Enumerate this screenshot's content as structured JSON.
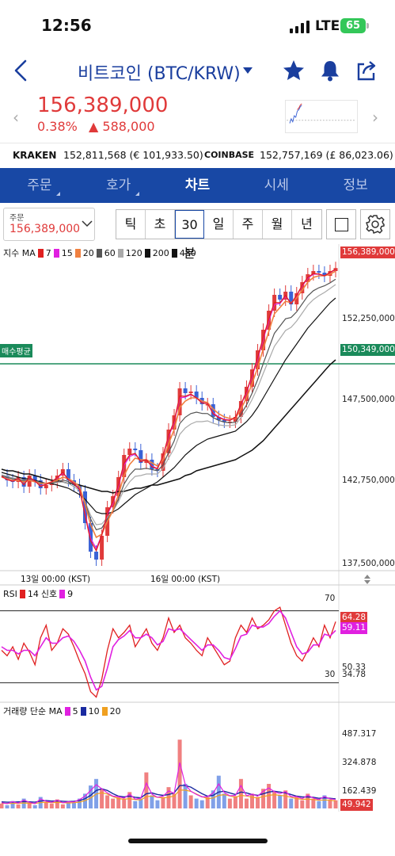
{
  "status": {
    "time": "12:56",
    "network": "LTE",
    "battery": "65"
  },
  "header": {
    "title": "비트코인 (BTC/KRW)"
  },
  "price": {
    "current": "156,389,000",
    "change_pct": "0.38%",
    "change_abs": "588,000"
  },
  "exchanges": {
    "kraken_label": "KRAKEN",
    "kraken_value": "152,811,568 (€ 101,933.50)",
    "coinbase_label": "COINBASE",
    "coinbase_value": "152,757,169 (£ 86,023.06)"
  },
  "tabs": [
    "주문",
    "호가",
    "차트",
    "시세",
    "정보"
  ],
  "active_tab": "차트",
  "order_select": {
    "label": "주문",
    "value": "156,389,000"
  },
  "periods": [
    "틱",
    "초",
    "30분",
    "일",
    "주",
    "월",
    "년"
  ],
  "selected_period": "30분",
  "colors": {
    "up": "#e03a3a",
    "down": "#3a62d6",
    "brand": "#1848a5",
    "avg_line": "#1a8a5a"
  },
  "chart_data": [
    {
      "type": "line",
      "title": "",
      "legend": {
        "label": "지수 MA",
        "entries": [
          {
            "name": "7",
            "color": "#e02020"
          },
          {
            "name": "15",
            "color": "#e020e0"
          },
          {
            "name": "20",
            "color": "#f08040"
          },
          {
            "name": "60",
            "color": "#555555"
          },
          {
            "name": "120",
            "color": "#aaaaaa"
          },
          {
            "name": "200",
            "color": "#111111"
          },
          {
            "name": "480",
            "color": "#111111"
          }
        ]
      },
      "y_ticks": [
        "152,250,000",
        "147,500,000",
        "142,750,000",
        "137,500,000"
      ],
      "current_tag": "156,389,000",
      "avg_buy": {
        "label": "매수평균",
        "value": "150,349,000",
        "numeric": 150349000
      },
      "ylim": [
        137500000,
        157700000
      ],
      "x_ticks": [
        "13일 00:00 (KST)",
        "16일 00:00 (KST)"
      ],
      "price_series": [
        143300000,
        143000000,
        142900000,
        143200000,
        142600000,
        143300000,
        143000000,
        142500000,
        142700000,
        142900000,
        143300000,
        143700000,
        143000000,
        142700000,
        142300000,
        140300000,
        138500000,
        138000000,
        139500000,
        141300000,
        142000000,
        143200000,
        144600000,
        145000000,
        144900000,
        144100000,
        144300000,
        143700000,
        143600000,
        144700000,
        146200000,
        147100000,
        148800000,
        148500000,
        148600000,
        148200000,
        147800000,
        147800000,
        147000000,
        146800000,
        146700000,
        146700000,
        147000000,
        148000000,
        148900000,
        150000000,
        151200000,
        152500000,
        153700000,
        154700000,
        154400000,
        154900000,
        154100000,
        154800000,
        155500000,
        156000000,
        156200000,
        156100000,
        155900000,
        156200000,
        156389000
      ],
      "ma_fast": [
        143200000,
        143100000,
        143000000,
        143000000,
        142900000,
        143000000,
        142900000,
        142800000,
        142800000,
        142900000,
        143000000,
        143200000,
        143100000,
        142900000,
        142600000,
        141500000,
        140200000,
        139400000,
        139600000,
        140400000,
        141100000,
        142100000,
        143300000,
        144000000,
        144400000,
        144300000,
        144300000,
        144100000,
        143900000,
        144300000,
        145300000,
        146200000,
        147600000,
        148000000,
        148200000,
        148200000,
        148000000,
        147900000,
        147500000,
        147200000,
        147000000,
        146900000,
        146900000,
        147500000,
        148200000,
        149100000,
        150100000,
        151300000,
        152400000,
        153500000,
        153900000,
        154300000,
        154200000,
        154500000,
        155000000,
        155500000,
        155800000,
        155900000,
        155900000,
        156000000,
        156200000
      ],
      "ma_200": [
        143700000,
        143600000,
        143600000,
        143500000,
        143400000,
        143400000,
        143300000,
        143200000,
        143100000,
        143000000,
        143000000,
        142900000,
        142800000,
        142800000,
        142700000,
        142600000,
        142500000,
        142400000,
        142300000,
        142300000,
        142200000,
        142300000,
        142300000,
        142400000,
        142500000,
        142500000,
        142600000,
        142700000,
        142700000,
        142800000,
        142900000,
        143000000,
        143100000,
        143300000,
        143400000,
        143600000,
        143700000,
        143800000,
        143900000,
        144000000,
        144100000,
        144200000,
        144300000,
        144500000,
        144700000,
        144900000,
        145200000,
        145500000,
        145900000,
        146300000,
        146700000,
        147100000,
        147500000,
        147900000,
        148300000,
        148700000,
        149100000,
        149500000,
        149900000,
        150300000,
        150600000
      ],
      "ma_60": [
        143500000,
        143400000,
        143300000,
        143200000,
        143100000,
        143100000,
        143000000,
        142900000,
        142800000,
        142800000,
        142700000,
        142600000,
        142500000,
        142300000,
        142100000,
        141800000,
        141400000,
        141000000,
        140900000,
        140900000,
        141000000,
        141200000,
        141500000,
        141800000,
        142100000,
        142300000,
        142500000,
        142700000,
        142900000,
        143200000,
        143500000,
        143800000,
        144200000,
        144600000,
        144900000,
        145200000,
        145400000,
        145600000,
        145700000,
        145800000,
        145900000,
        146000000,
        146100000,
        146400000,
        146700000,
        147100000,
        147600000,
        148200000,
        148800000,
        149400000,
        150000000,
        150600000,
        151100000,
        151600000,
        152100000,
        152600000,
        153000000,
        153400000,
        153800000,
        154200000,
        154500000
      ]
    },
    {
      "type": "line",
      "title": "",
      "legend": {
        "label": "RSI",
        "entries": [
          {
            "name": "14",
            "color": "#e02020"
          },
          {
            "name": "신호",
            "color": "#e020e0"
          },
          {
            "name": "9",
            "color": "#e020e0"
          }
        ]
      },
      "levels": [
        70,
        30
      ],
      "y_ticks": [
        "70",
        "50.33",
        "34.78",
        "30"
      ],
      "tags": [
        "64.28",
        "59.11"
      ],
      "ylim": [
        20,
        80
      ],
      "rsi": [
        48,
        45,
        50,
        43,
        52,
        47,
        40,
        55,
        62,
        48,
        52,
        60,
        57,
        50,
        42,
        35,
        25,
        22,
        32,
        48,
        60,
        55,
        58,
        62,
        50,
        55,
        60,
        52,
        48,
        55,
        66,
        58,
        62,
        55,
        52,
        48,
        45,
        55,
        50,
        45,
        40,
        42,
        55,
        62,
        58,
        66,
        60,
        62,
        65,
        70,
        72,
        62,
        52,
        45,
        42,
        48,
        55,
        50,
        62,
        55,
        64
      ],
      "signal": [
        50,
        48,
        48,
        46,
        48,
        48,
        45,
        50,
        55,
        52,
        52,
        55,
        56,
        53,
        48,
        42,
        33,
        26,
        28,
        38,
        50,
        54,
        56,
        59,
        55,
        55,
        57,
        55,
        51,
        53,
        60,
        59,
        60,
        57,
        54,
        51,
        48,
        51,
        51,
        48,
        44,
        43,
        49,
        56,
        57,
        62,
        61,
        61,
        63,
        67,
        70,
        66,
        58,
        50,
        46,
        47,
        51,
        51,
        57,
        56,
        59.11
      ]
    },
    {
      "type": "bar",
      "title": "",
      "legend": {
        "label": "거래량 단순 MA",
        "entries": [
          {
            "name": "5",
            "color": "#e020e0"
          },
          {
            "name": "10",
            "color": "#1a2aa0"
          },
          {
            "name": "20",
            "color": "#f0a020"
          }
        ]
      },
      "y_ticks": [
        "487.317",
        "324.878",
        "162.439"
      ],
      "current_tag": "49.942",
      "ylim": [
        0,
        600
      ],
      "volume": [
        30,
        20,
        45,
        25,
        60,
        35,
        20,
        70,
        40,
        30,
        55,
        25,
        40,
        35,
        60,
        90,
        140,
        180,
        120,
        80,
        60,
        70,
        55,
        100,
        45,
        60,
        220,
        80,
        50,
        70,
        130,
        90,
        420,
        150,
        80,
        60,
        50,
        70,
        110,
        200,
        90,
        60,
        75,
        180,
        60,
        90,
        70,
        120,
        150,
        100,
        80,
        110,
        60,
        70,
        50,
        90,
        60,
        45,
        80,
        55,
        49.942
      ],
      "ma": [
        40,
        38,
        38,
        40,
        42,
        40,
        38,
        45,
        48,
        45,
        46,
        44,
        42,
        44,
        48,
        60,
        80,
        110,
        120,
        110,
        90,
        75,
        70,
        75,
        68,
        65,
        90,
        95,
        85,
        80,
        85,
        95,
        140,
        140,
        130,
        110,
        90,
        75,
        80,
        100,
        105,
        95,
        85,
        100,
        95,
        85,
        80,
        90,
        100,
        105,
        100,
        95,
        85,
        75,
        70,
        70,
        68,
        62,
        65,
        62,
        58
      ]
    }
  ]
}
